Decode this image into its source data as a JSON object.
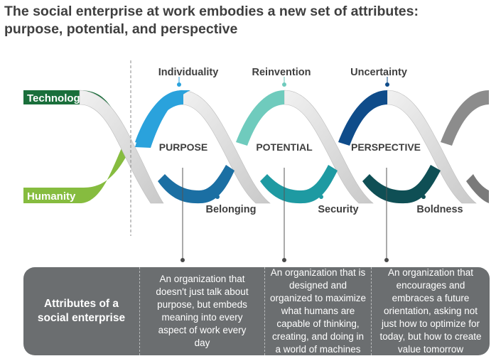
{
  "title": {
    "line1": "The social enterprise at work embodies a new set of attributes:",
    "line2": "purpose, potential, and perspective"
  },
  "strands": {
    "top": "Technology",
    "bottom": "Humanity"
  },
  "loops": [
    {
      "center": "PURPOSE",
      "top": "Individuality",
      "bottom": "Belonging",
      "top_color": "#2aa2dc",
      "bottom_color": "#1b6fa3"
    },
    {
      "center": "POTENTIAL",
      "top": "Reinvention",
      "bottom": "Security",
      "top_color": "#6fcbbd",
      "bottom_color": "#1e9aa2"
    },
    {
      "center": "PERSPECTIVE",
      "top": "Uncertainty",
      "bottom": "Boldness",
      "top_color": "#0f4c8a",
      "bottom_color": "#0f4f55"
    }
  ],
  "colors": {
    "technology": "#1a6f3b",
    "humanity": "#86bc3f",
    "ribbon": "#d4d4d4",
    "box": "#6b6e70",
    "end_gray": "#8c8c8c"
  },
  "table": {
    "header": "Attributes of a social enterprise",
    "cells": [
      "An organization that doesn't just talk about purpose, but embeds meaning into every aspect of work every day",
      "An organization that is designed and organized to maximize what humans are capable of thinking, creating, and doing in a world of machines",
      "An organization that encourages and embraces a future orientation, asking not just how to optimize for today, but how to create value tomorrow"
    ]
  }
}
